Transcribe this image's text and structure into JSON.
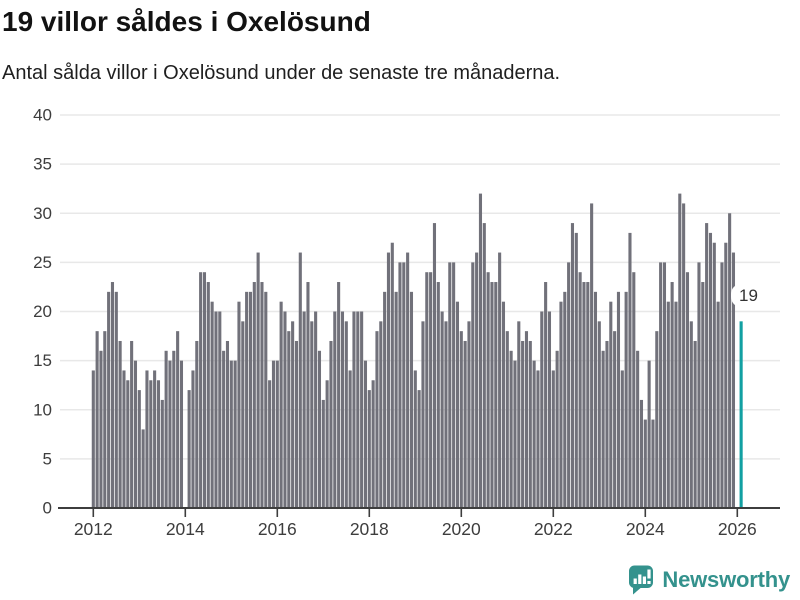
{
  "title": "19 villor såldes i Oxelösund",
  "subtitle": "Antal sålda villor i Oxelösund under de senaste tre månaderna.",
  "annotation": {
    "label": "19"
  },
  "branding": {
    "name": "Newsworthy",
    "color": "#34928d"
  },
  "chart_data": {
    "type": "bar",
    "title": "19 villor såldes i Oxelösund",
    "subtitle": "Antal sålda villor i Oxelösund under de senaste tre månaderna.",
    "x_unit": "month",
    "x_start_month": "2012-01",
    "x_end_month": "2026-02",
    "ylim": [
      0,
      40
    ],
    "y_ticks": [
      0,
      5,
      10,
      15,
      20,
      25,
      30,
      35,
      40
    ],
    "x_tick_years": [
      2012,
      2014,
      2016,
      2018,
      2020,
      2022,
      2024,
      2026
    ],
    "grid": true,
    "legend": false,
    "values": [
      14,
      18,
      16,
      18,
      22,
      23,
      22,
      17,
      14,
      13,
      17,
      15,
      12,
      8,
      14,
      13,
      14,
      13,
      11,
      16,
      15,
      16,
      18,
      15,
      null,
      12,
      14,
      17,
      24,
      24,
      23,
      21,
      20,
      20,
      16,
      17,
      15,
      15,
      21,
      19,
      22,
      22,
      23,
      26,
      23,
      22,
      13,
      15,
      15,
      21,
      20,
      18,
      19,
      17,
      26,
      20,
      23,
      19,
      20,
      16,
      11,
      13,
      17,
      20,
      23,
      20,
      19,
      14,
      20,
      20,
      20,
      15,
      12,
      13,
      18,
      19,
      22,
      26,
      27,
      22,
      25,
      25,
      26,
      22,
      14,
      12,
      19,
      24,
      24,
      29,
      23,
      20,
      19,
      25,
      25,
      21,
      18,
      17,
      19,
      25,
      26,
      32,
      29,
      24,
      23,
      23,
      26,
      21,
      18,
      16,
      15,
      19,
      17,
      18,
      17,
      15,
      14,
      20,
      23,
      20,
      14,
      16,
      21,
      22,
      25,
      29,
      28,
      24,
      23,
      23,
      31,
      22,
      19,
      16,
      17,
      21,
      18,
      22,
      14,
      22,
      28,
      24,
      16,
      11,
      9,
      15,
      9,
      18,
      25,
      25,
      21,
      23,
      21,
      32,
      31,
      24,
      19,
      17,
      25,
      23,
      29,
      28,
      27,
      21,
      25,
      27,
      30,
      26,
      null,
      19
    ],
    "highlight": {
      "month": "2026-02",
      "index": 169,
      "value": 19,
      "color": "#12a0a2"
    },
    "colors": {
      "bar": "#71717a",
      "highlight": "#12a0a2",
      "grid": "#e8e8e8",
      "axis": "#3d3d3d",
      "tick_text": "#3d3d3d",
      "annotation_text": "#333333"
    }
  }
}
